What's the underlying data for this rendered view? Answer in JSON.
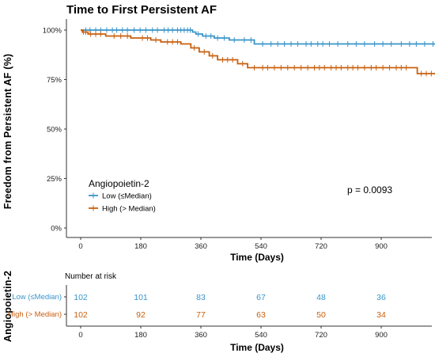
{
  "chart_data": {
    "type": "line",
    "title": "Time to First Persistent AF",
    "xlabel": "Time (Days)",
    "ylabel": "Freedom from Persistent AF (%)",
    "xlim": [
      -40,
      1070
    ],
    "ylim": [
      0,
      100
    ],
    "xticks": [
      0,
      180,
      360,
      540,
      720,
      900
    ],
    "yticks": [
      0,
      25,
      50,
      75,
      100
    ],
    "ytick_labels": [
      "0%",
      "25%",
      "50%",
      "75%",
      "100%"
    ],
    "legend": {
      "title": "Angiopoietin-2",
      "position": "left-middle"
    },
    "annotation": "p = 0.0093",
    "series": [
      {
        "name": "Low (≤Median)",
        "color": "#3a95c9",
        "steps": [
          [
            0,
            100
          ],
          [
            335,
            99
          ],
          [
            345,
            98
          ],
          [
            365,
            97
          ],
          [
            400,
            96
          ],
          [
            445,
            95
          ],
          [
            520,
            93
          ],
          [
            1070,
            93
          ]
        ],
        "censored": [
          15,
          28,
          45,
          60,
          78,
          95,
          108,
          125,
          140,
          160,
          178,
          195,
          215,
          230,
          250,
          262,
          275,
          290,
          300,
          310,
          320,
          328,
          352,
          375,
          390,
          410,
          430,
          460,
          490,
          510,
          545,
          570,
          590,
          610,
          630,
          650,
          675,
          690,
          710,
          725,
          745,
          770,
          800,
          825,
          850,
          880,
          905,
          930,
          960,
          985,
          1005,
          1030,
          1055
        ]
      },
      {
        "name": "High (> Median)",
        "color": "#c8600f",
        "steps": [
          [
            0,
            100
          ],
          [
            5,
            99
          ],
          [
            22,
            98
          ],
          [
            75,
            97
          ],
          [
            150,
            96
          ],
          [
            210,
            95
          ],
          [
            240,
            94
          ],
          [
            300,
            93
          ],
          [
            330,
            91
          ],
          [
            355,
            89
          ],
          [
            385,
            87
          ],
          [
            410,
            85
          ],
          [
            470,
            83
          ],
          [
            500,
            81
          ],
          [
            990,
            81
          ],
          [
            1008,
            78
          ],
          [
            1070,
            78
          ]
        ],
        "censored": [
          8,
          15,
          30,
          45,
          60,
          100,
          120,
          140,
          185,
          200,
          225,
          260,
          275,
          290,
          340,
          370,
          395,
          425,
          440,
          455,
          485,
          520,
          545,
          560,
          580,
          600,
          620,
          640,
          660,
          680,
          700,
          715,
          730,
          750,
          765,
          780,
          800,
          815,
          830,
          850,
          870,
          885,
          905,
          925,
          945,
          960,
          975,
          1020,
          1035,
          1050,
          1062
        ]
      }
    ],
    "risk_table": {
      "side_label": "Angiopoietin-2",
      "title": "Number at risk",
      "xlabel": "Time (Days)",
      "rows": [
        {
          "label": "Low (≤Median)",
          "color": "#3a95c9",
          "values": [
            102,
            101,
            83,
            67,
            48,
            36
          ]
        },
        {
          "label": "High (> Median)",
          "color": "#c8600f",
          "values": [
            102,
            92,
            77,
            63,
            50,
            34
          ]
        }
      ]
    }
  }
}
